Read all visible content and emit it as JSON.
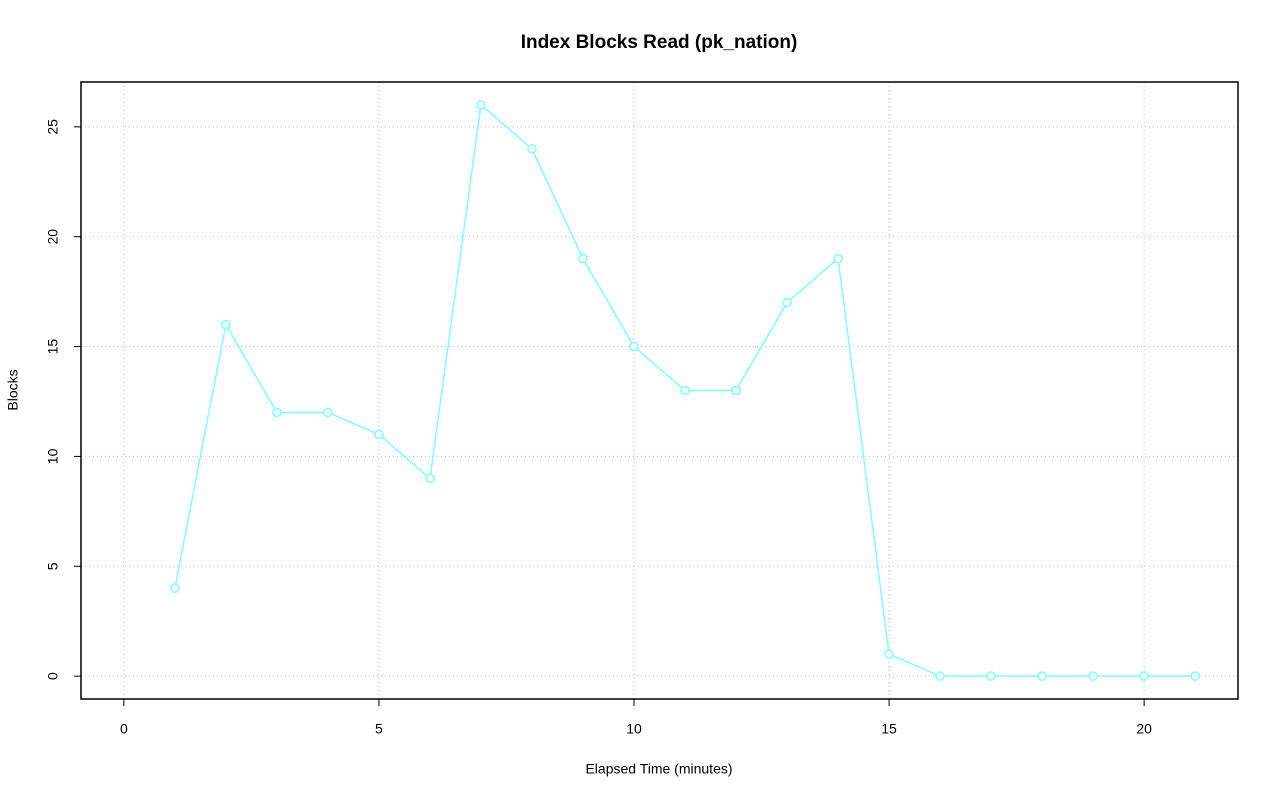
{
  "chart_data": {
    "type": "line",
    "title": "Index Blocks Read (pk_nation)",
    "x_label": "Elapsed Time (minutes)",
    "y_label": "Blocks",
    "x": [
      1,
      2,
      3,
      4,
      5,
      6,
      7,
      8,
      9,
      10,
      11,
      12,
      13,
      14,
      15,
      16,
      17,
      18,
      19,
      20,
      21
    ],
    "series": [
      {
        "name": "pk_nation",
        "color": "#7fffff",
        "values": [
          4,
          16,
          12,
          12,
          11,
          9,
          26,
          24,
          19,
          15,
          13,
          13,
          17,
          19,
          1,
          0,
          0,
          0,
          0,
          0,
          0
        ]
      }
    ],
    "xlim": [
      -0.84,
      21.84
    ],
    "ylim": [
      -1.04,
      27.04
    ],
    "xticks": [
      0,
      5,
      10,
      15,
      20
    ],
    "yticks": [
      0,
      5,
      10,
      15,
      20,
      25
    ],
    "grid": true
  }
}
